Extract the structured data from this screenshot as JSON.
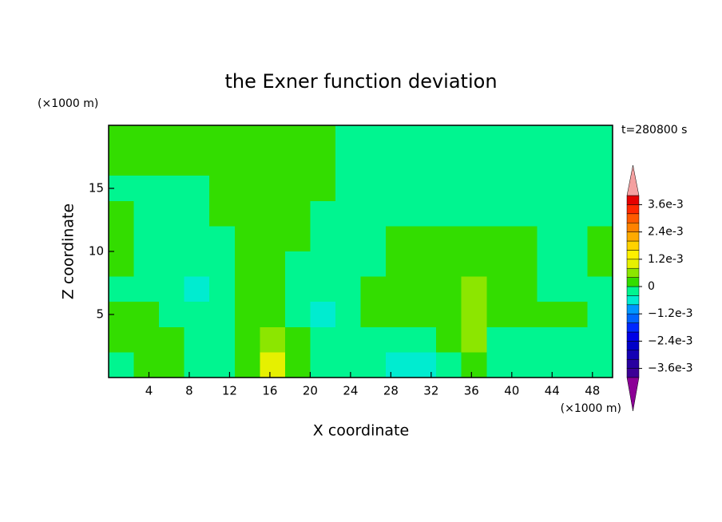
{
  "chart_data": {
    "type": "contour",
    "title": "the Exner function deviation",
    "xlabel": "X coordinate",
    "ylabel": "Z coordinate",
    "xunit": "(×1000 m)",
    "yunit": "(×1000 m)",
    "annotation": "t=280800 s",
    "xlim": [
      0,
      50
    ],
    "ylim": [
      0,
      20
    ],
    "xticks": [
      4,
      8,
      12,
      16,
      20,
      24,
      28,
      32,
      36,
      40,
      44,
      48
    ],
    "yticks": [
      5,
      10,
      15
    ],
    "x": [
      1.25,
      3.75,
      6.25,
      8.75,
      11.25,
      13.75,
      16.25,
      18.75,
      21.25,
      23.75,
      26.25,
      28.75,
      31.25,
      33.75,
      36.25,
      38.75,
      41.25,
      43.75,
      46.25,
      48.75
    ],
    "y": [
      19,
      17,
      15,
      13,
      11,
      9,
      7,
      5,
      3,
      1
    ],
    "z": [
      [
        0.0002,
        0.0002,
        0.0002,
        0.0002,
        0.0002,
        0.0002,
        0.0002,
        0.0002,
        0.0002,
        -0.0002,
        -0.0002,
        -0.0002,
        -0.0002,
        -0.0002,
        -0.0002,
        -0.0002,
        -0.0002,
        -0.0002,
        -0.0002,
        -0.0002
      ],
      [
        0.0002,
        0.0002,
        0.0002,
        0.0002,
        0.0002,
        0.0002,
        0.0002,
        0.0002,
        0.0002,
        -0.0002,
        -0.0002,
        -0.0002,
        -0.0002,
        -0.0002,
        -0.0002,
        -0.0002,
        -0.0002,
        -0.0002,
        -0.0002,
        -0.0002
      ],
      [
        -0.0002,
        -0.0002,
        -0.0002,
        -0.0002,
        0.0002,
        0.0002,
        0.0002,
        0.0002,
        0.0002,
        -0.0002,
        -0.0002,
        -0.0002,
        -0.0002,
        -0.0002,
        -0.0002,
        -0.0002,
        -0.0002,
        -0.0002,
        -0.0002,
        -0.0002
      ],
      [
        0.0002,
        -0.0002,
        -0.0002,
        -0.0002,
        0.0002,
        0.0002,
        0.0002,
        0.0002,
        -0.0002,
        -0.0002,
        -0.0002,
        -0.0002,
        -0.0002,
        -0.0002,
        -0.0002,
        -0.0002,
        -0.0002,
        -0.0002,
        -0.0002,
        -0.0002
      ],
      [
        0.0002,
        -0.0002,
        -0.0002,
        -0.0002,
        -0.0002,
        0.0002,
        0.0002,
        0.0002,
        -0.0002,
        -0.0002,
        -0.0002,
        0.0002,
        0.0002,
        0.0002,
        0.0002,
        0.0002,
        0.0002,
        -0.0002,
        -0.0002,
        0.0002
      ],
      [
        0.0002,
        -0.0002,
        -0.0002,
        -0.0002,
        -0.0002,
        0.0002,
        0.0002,
        -0.0002,
        -0.0002,
        -0.0002,
        -0.0002,
        0.0002,
        0.0002,
        0.0002,
        0.0002,
        0.0002,
        0.0002,
        -0.0002,
        -0.0002,
        0.0002
      ],
      [
        -0.0002,
        -0.0002,
        -0.0002,
        -0.0006,
        -0.0002,
        0.0002,
        0.0002,
        -0.0002,
        -0.0002,
        -0.0002,
        0.0002,
        0.0002,
        0.0002,
        0.0002,
        0.0006,
        0.0002,
        0.0002,
        -0.0002,
        -0.0002,
        -0.0002
      ],
      [
        0.0002,
        0.0002,
        -0.0002,
        -0.0002,
        -0.0002,
        0.0002,
        0.0002,
        -0.0002,
        -0.0006,
        -0.0002,
        0.0002,
        0.0002,
        0.0002,
        0.0002,
        0.0006,
        0.0002,
        0.0002,
        0.0002,
        0.0002,
        -0.0002
      ],
      [
        0.0002,
        0.0002,
        0.0002,
        -0.0002,
        -0.0002,
        0.0002,
        0.0006,
        0.0002,
        -0.0002,
        -0.0002,
        -0.0002,
        -0.0002,
        -0.0002,
        0.0002,
        0.0006,
        -0.0002,
        -0.0002,
        -0.0002,
        -0.0002,
        -0.0002
      ],
      [
        -0.0002,
        0.0002,
        0.0002,
        -0.0002,
        -0.0002,
        0.0002,
        0.001,
        0.0002,
        -0.0002,
        -0.0002,
        -0.0002,
        -0.0006,
        -0.0006,
        -0.0002,
        0.0002,
        -0.0002,
        -0.0002,
        -0.0002,
        -0.0002,
        -0.0002
      ]
    ],
    "levels": [
      -0.004,
      -0.0036,
      -0.0032,
      -0.0028,
      -0.0024,
      -0.002,
      -0.0016,
      -0.0012,
      -0.0008,
      -0.0004,
      0,
      0.0004,
      0.0008,
      0.0012,
      0.0016,
      0.002,
      0.0024,
      0.0028,
      0.0032,
      0.0036,
      0.004
    ],
    "colors": [
      "#3c0096",
      "#2800a0",
      "#1400b4",
      "#0000c8",
      "#0000e6",
      "#0028ff",
      "#0064ff",
      "#0096ff",
      "#00ecd0",
      "#00f590",
      "#33dd00",
      "#8ce600",
      "#e6f000",
      "#fff000",
      "#ffd200",
      "#ffaa00",
      "#ff8200",
      "#ff5a00",
      "#ff2800",
      "#e60000"
    ],
    "under_color": "#8c0096",
    "over_color": "#f4a0a0",
    "colorbar_ticks": [
      {
        "value": 0.0036,
        "label": "3.6e-3"
      },
      {
        "value": 0.0024,
        "label": "2.4e-3"
      },
      {
        "value": 0.0012,
        "label": "1.2e-3"
      },
      0,
      {
        "value": -0.0012,
        "label": "−1.2e-3"
      },
      {
        "value": -0.0024,
        "label": "−2.4e-3"
      },
      {
        "value": -0.0036,
        "label": "−3.6e-3"
      }
    ]
  }
}
